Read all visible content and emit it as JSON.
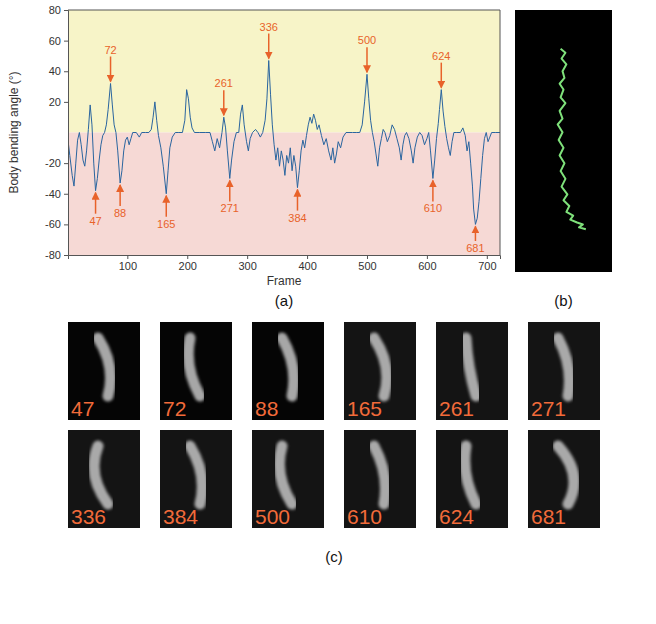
{
  "chart_data": [
    {
      "type": "line",
      "title": "(a)",
      "x_label": "Frame",
      "y_label": "Body bending angle (°)",
      "color": "#2a659f",
      "x": [
        1,
        4,
        8,
        11,
        14,
        17,
        20,
        23,
        26,
        29,
        32,
        35,
        38,
        41,
        44,
        47,
        50,
        53,
        56,
        59,
        62,
        65,
        68,
        72,
        75,
        78,
        81,
        84,
        88,
        91,
        94,
        97,
        100,
        103,
        106,
        109,
        115,
        120,
        124,
        130,
        136,
        140,
        143,
        146,
        149,
        152,
        156,
        160,
        165,
        168,
        171,
        175,
        180,
        186,
        192,
        196,
        199,
        202,
        205,
        208,
        212,
        220,
        230,
        238,
        242,
        246,
        250,
        254,
        258,
        261,
        264,
        267,
        271,
        274,
        278,
        282,
        286,
        289,
        292,
        295,
        299,
        302,
        305,
        309,
        314,
        318,
        322,
        326,
        330,
        333,
        336,
        339,
        342,
        345,
        348,
        351,
        354,
        357,
        360,
        363,
        366,
        369,
        372,
        375,
        378,
        381,
        384,
        387,
        390,
        393,
        396,
        399,
        402,
        405,
        408,
        411,
        414,
        417,
        420,
        424,
        428,
        432,
        436,
        440,
        443,
        446,
        449,
        452,
        456,
        460,
        465,
        470,
        476,
        482,
        488,
        492,
        496,
        500,
        503,
        506,
        509,
        512,
        515,
        518,
        521,
        524,
        527,
        530,
        534,
        538,
        542,
        546,
        550,
        554,
        557,
        560,
        563,
        566,
        570,
        574,
        577,
        580,
        584,
        588,
        592,
        596,
        600,
        603,
        606,
        610,
        613,
        616,
        619,
        621,
        624,
        627,
        630,
        633,
        636,
        639,
        642,
        645,
        650,
        656,
        660,
        664,
        667,
        670,
        673,
        676,
        678,
        681,
        684,
        687,
        690,
        693,
        696,
        699,
        702,
        705,
        708,
        715,
        722
      ],
      "values": [
        -5,
        -15,
        -28,
        -35,
        -20,
        -5,
        0,
        -8,
        -18,
        -22,
        -12,
        2,
        18,
        5,
        -20,
        -38,
        -30,
        -18,
        -8,
        -2,
        0,
        5,
        15,
        32,
        18,
        5,
        0,
        -12,
        -33,
        -25,
        -12,
        -5,
        -3,
        -8,
        -4,
        0,
        0,
        -3,
        0,
        0,
        0,
        2,
        10,
        20,
        8,
        -2,
        -10,
        -22,
        -40,
        -25,
        -10,
        -3,
        0,
        0,
        0,
        8,
        28,
        22,
        10,
        3,
        0,
        0,
        0,
        0,
        -6,
        -12,
        -4,
        -10,
        0,
        10,
        3,
        -12,
        -30,
        -18,
        -6,
        0,
        0,
        12,
        18,
        5,
        -6,
        -12,
        -4,
        0,
        2,
        0,
        -3,
        0,
        8,
        22,
        47,
        25,
        5,
        -8,
        -18,
        -10,
        -22,
        -12,
        -18,
        -28,
        -15,
        -20,
        -10,
        -25,
        -15,
        -22,
        -36,
        -25,
        -12,
        -5,
        -10,
        -2,
        5,
        10,
        6,
        12,
        8,
        2,
        5,
        -2,
        -8,
        -4,
        -12,
        -18,
        -10,
        -20,
        -14,
        -6,
        -10,
        -3,
        0,
        0,
        0,
        0,
        0,
        5,
        20,
        38,
        22,
        8,
        0,
        -6,
        -14,
        -22,
        -10,
        -4,
        2,
        0,
        -6,
        -2,
        5,
        2,
        -4,
        -10,
        -18,
        -8,
        -2,
        0,
        -4,
        -12,
        -20,
        -10,
        -3,
        0,
        -2,
        -8,
        -4,
        0,
        -12,
        -30,
        -18,
        -4,
        6,
        15,
        28,
        14,
        4,
        -4,
        -10,
        -15,
        -6,
        0,
        0,
        0,
        3,
        -2,
        -12,
        -6,
        -20,
        -35,
        -50,
        -60,
        -56,
        -45,
        -30,
        -15,
        -4,
        0,
        -6,
        -3,
        0,
        0,
        0
      ],
      "xlim": [
        1,
        722
      ],
      "ylim": [
        -80,
        80
      ],
      "xticks": [
        100,
        200,
        300,
        400,
        500,
        600,
        700
      ],
      "yticks": [
        80,
        60,
        40,
        20,
        -20,
        -40,
        -60,
        -80
      ],
      "annotations": [
        {
          "x": 47,
          "y": -38
        },
        {
          "x": 72,
          "y": 32
        },
        {
          "x": 88,
          "y": -33
        },
        {
          "x": 165,
          "y": -40
        },
        {
          "x": 261,
          "y": 10
        },
        {
          "x": 271,
          "y": -30
        },
        {
          "x": 336,
          "y": 47
        },
        {
          "x": 384,
          "y": -36
        },
        {
          "x": 500,
          "y": 38
        },
        {
          "x": 610,
          "y": -30
        },
        {
          "x": 624,
          "y": 28
        },
        {
          "x": 681,
          "y": -60
        }
      ]
    },
    {
      "type": "line",
      "title": "(b)",
      "color": "#7ee07a",
      "tick_labels": false,
      "x": [
        47,
        52,
        48,
        53,
        49,
        51,
        46,
        50,
        47,
        52,
        46,
        49,
        44,
        49,
        45,
        50,
        46,
        51,
        47,
        52,
        48,
        54,
        50,
        56,
        53,
        60,
        57,
        64,
        70,
        66,
        73
      ],
      "values": [
        230,
        226,
        220,
        214,
        207,
        200,
        194,
        188,
        180,
        174,
        166,
        158,
        152,
        144,
        136,
        128,
        120,
        112,
        104,
        96,
        88,
        80,
        74,
        68,
        62,
        58,
        54,
        51,
        49,
        46,
        44
      ],
      "xlim": [
        0,
        100
      ],
      "ylim": [
        0,
        270
      ]
    }
  ],
  "snapshots": {
    "title": "(c)",
    "frames": [
      47,
      72,
      88,
      165,
      261,
      271,
      336,
      384,
      500,
      610,
      624,
      681
    ]
  }
}
